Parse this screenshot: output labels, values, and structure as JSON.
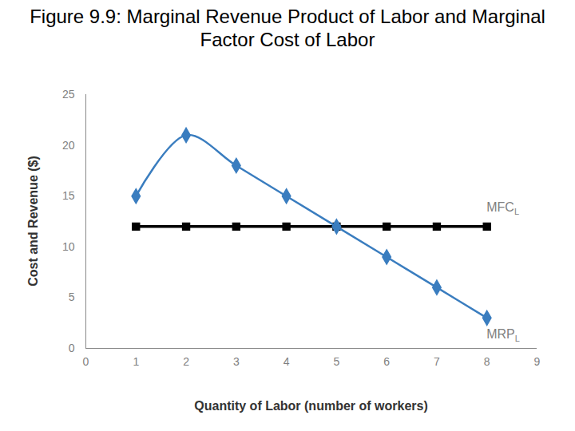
{
  "chart_data": {
    "type": "line",
    "title": "Figure 9.9: Marginal Revenue Product of Labor and Marginal Factor Cost of Labor",
    "x_label": "Quantity of Labor (number of workers)",
    "y_label": "Cost and Revenue ($)",
    "x": [
      1,
      2,
      3,
      4,
      5,
      6,
      7,
      8
    ],
    "series": [
      {
        "name": "MRPL",
        "color": "#3a7dbf",
        "marker": "diamond",
        "line_style": "smooth",
        "values": [
          15,
          21,
          18,
          15,
          12,
          9,
          6,
          3
        ]
      },
      {
        "name": "MFCL",
        "color": "#000000",
        "marker": "square",
        "line_style": "solid",
        "values": [
          12,
          12,
          12,
          12,
          12,
          12,
          12,
          12
        ]
      }
    ],
    "xlim": [
      0,
      9
    ],
    "xticks": [
      0,
      1,
      2,
      3,
      4,
      5,
      6,
      7,
      8,
      9
    ],
    "ylim": [
      0,
      25
    ],
    "yticks": [
      0,
      5,
      10,
      15,
      20,
      25
    ],
    "grid": false
  }
}
